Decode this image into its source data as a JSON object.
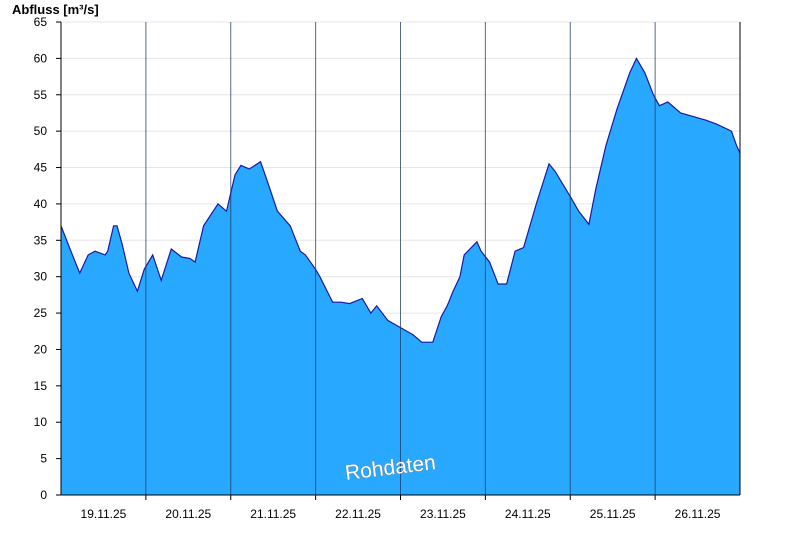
{
  "chart_data": {
    "type": "area",
    "ylabel": "Abfluss [m³/s]",
    "ylim": [
      0,
      65
    ],
    "yticks": [
      0,
      5,
      10,
      15,
      20,
      25,
      30,
      35,
      40,
      45,
      50,
      55,
      60,
      65
    ],
    "xlim": [
      0,
      8
    ],
    "xlabels": [
      "19.11.25",
      "20.11.25",
      "21.11.25",
      "22.11.25",
      "23.11.25",
      "24.11.25",
      "25.11.25",
      "26.11.25"
    ],
    "day_boundaries": [
      1,
      2,
      3,
      4,
      5,
      6,
      7
    ],
    "grid": false,
    "watermark": "Rohdaten",
    "colors": {
      "fill": "#29a8ff",
      "line": "#1a1aa0",
      "axis": "#000000"
    },
    "series": [
      {
        "x": [
          0,
          0.1,
          0.22,
          0.32,
          0.4,
          0.52,
          0.55,
          0.62,
          0.66,
          0.72,
          0.8,
          0.9,
          0.98,
          1.08,
          1.18,
          1.3,
          1.42,
          1.52,
          1.58,
          1.68,
          1.85,
          1.95,
          2.05,
          2.12,
          2.22,
          2.35,
          2.42,
          2.55,
          2.7,
          2.82,
          2.88,
          3.0,
          3.05,
          3.2,
          3.3,
          3.4,
          3.55,
          3.65,
          3.72,
          3.85,
          4.0,
          4.15,
          4.25,
          4.38,
          4.48,
          4.55,
          4.62,
          4.7,
          4.75,
          4.9,
          4.95,
          5.05,
          5.15,
          5.25,
          5.35,
          5.45,
          5.6,
          5.75,
          5.82,
          6.0,
          6.1,
          6.22,
          6.3,
          6.42,
          6.55,
          6.7,
          6.78,
          6.88,
          6.98,
          7.05,
          7.15,
          7.3,
          7.45,
          7.6,
          7.72,
          7.9,
          7.96,
          8.0
        ],
        "y": [
          37,
          34,
          30.5,
          33,
          33.5,
          33,
          33.5,
          37,
          37,
          34.5,
          30.5,
          28,
          31,
          33,
          29.5,
          33.8,
          32.7,
          32.5,
          32,
          37,
          40,
          39,
          44,
          45.3,
          44.8,
          45.8,
          43.5,
          39,
          37,
          33.5,
          33,
          31,
          30,
          26.5,
          26.5,
          26.3,
          27,
          25,
          26,
          24,
          23,
          22,
          21,
          21,
          24.5,
          26,
          28,
          30,
          33,
          34.8,
          33.5,
          32,
          29,
          29,
          33.5,
          34,
          40,
          45.5,
          44.5,
          41,
          39,
          37.2,
          42,
          48,
          53,
          58,
          60,
          58,
          55,
          53.5,
          54,
          52.5,
          52,
          51.5,
          51,
          50,
          48,
          47
        ]
      }
    ]
  }
}
